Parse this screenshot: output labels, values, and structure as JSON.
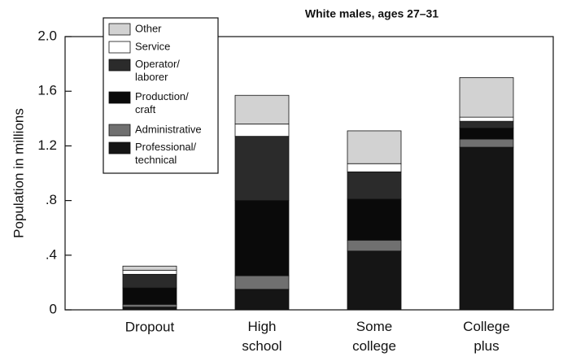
{
  "chart_data": {
    "type": "bar",
    "stacked": true,
    "title": "White males, ages 27–31",
    "ylabel": "Population in millions",
    "categories": [
      "Dropout",
      "High school",
      "Some college",
      "College plus"
    ],
    "series": [
      {
        "name": "Professional/technical",
        "color": "#151515",
        "values": [
          0.02,
          0.15,
          0.43,
          1.19
        ]
      },
      {
        "name": "Administrative",
        "color": "#707070",
        "values": [
          0.02,
          0.1,
          0.08,
          0.06
        ]
      },
      {
        "name": "Production/craft",
        "color": "#0a0a0a",
        "values": [
          0.12,
          0.55,
          0.3,
          0.08
        ]
      },
      {
        "name": "Operator/laborer",
        "color": "#2b2b2b",
        "values": [
          0.1,
          0.47,
          0.2,
          0.05
        ]
      },
      {
        "name": "Service",
        "color": "#ffffff",
        "values": [
          0.03,
          0.09,
          0.06,
          0.03
        ]
      },
      {
        "name": "Other",
        "color": "#d2d2d2",
        "values": [
          0.03,
          0.21,
          0.24,
          0.29
        ]
      }
    ],
    "ylim": [
      0,
      2.0
    ],
    "yticks": [
      0,
      {
        "value": 0.4,
        "label": ".4"
      },
      {
        "value": 0.8,
        "label": ".8"
      },
      {
        "value": 1.2,
        "label": "1.2"
      },
      {
        "value": 1.6,
        "label": "1.6"
      },
      {
        "value": 2.0,
        "label": "2.0"
      }
    ],
    "legend": "upper left"
  }
}
